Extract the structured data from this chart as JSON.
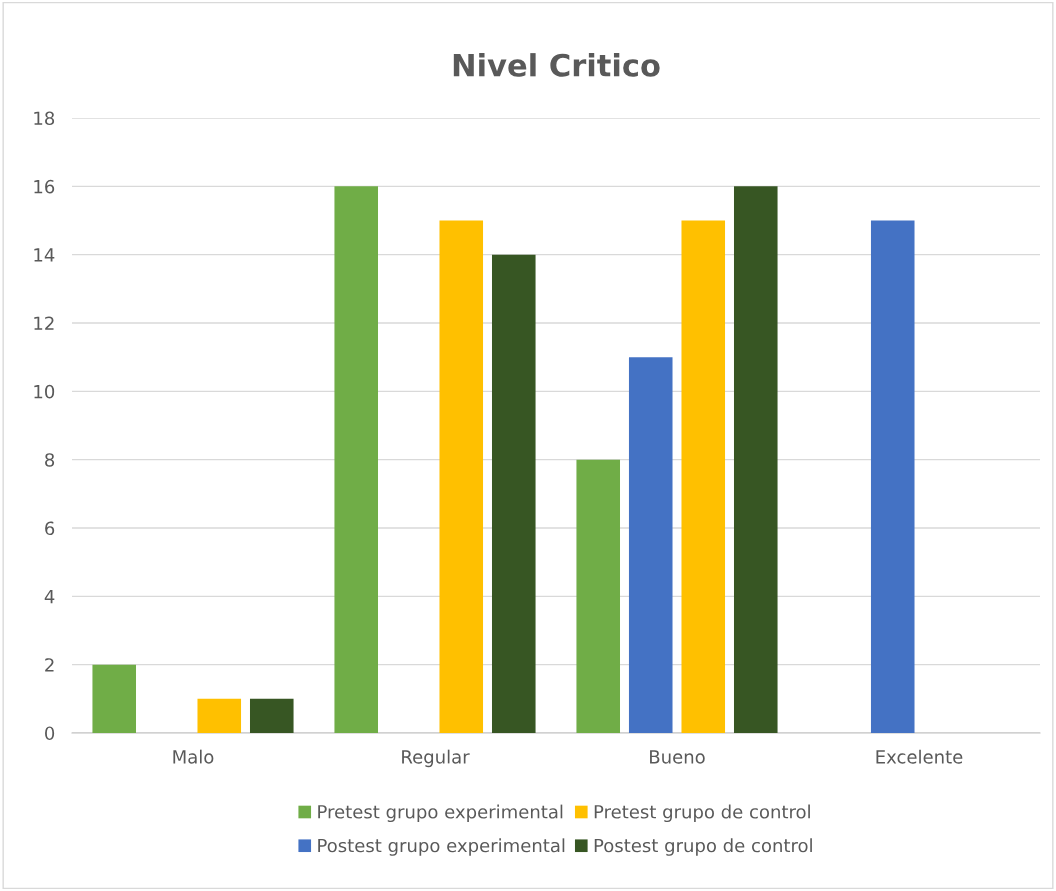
{
  "chart_data": {
    "type": "bar",
    "title": "Nivel Critico",
    "categories": [
      "Malo",
      "Regular",
      "Bueno",
      "Excelente"
    ],
    "series": [
      {
        "name": "Pretest grupo experimental",
        "color": "#70ad47",
        "values": [
          2,
          16,
          8,
          0
        ]
      },
      {
        "name": "Postest grupo experimental",
        "color": "#4472c4",
        "values": [
          0,
          0,
          11,
          15
        ]
      },
      {
        "name": "Pretest grupo de control",
        "color": "#ffc000",
        "values": [
          1,
          15,
          15,
          0
        ]
      },
      {
        "name": "Postest grupo de control",
        "color": "#375623",
        "values": [
          1,
          14,
          16,
          0
        ]
      }
    ],
    "ylim": [
      0,
      18
    ],
    "yticks": [
      0,
      2,
      4,
      6,
      8,
      10,
      12,
      14,
      16,
      18
    ],
    "grid": "y",
    "legend": "bottom"
  }
}
